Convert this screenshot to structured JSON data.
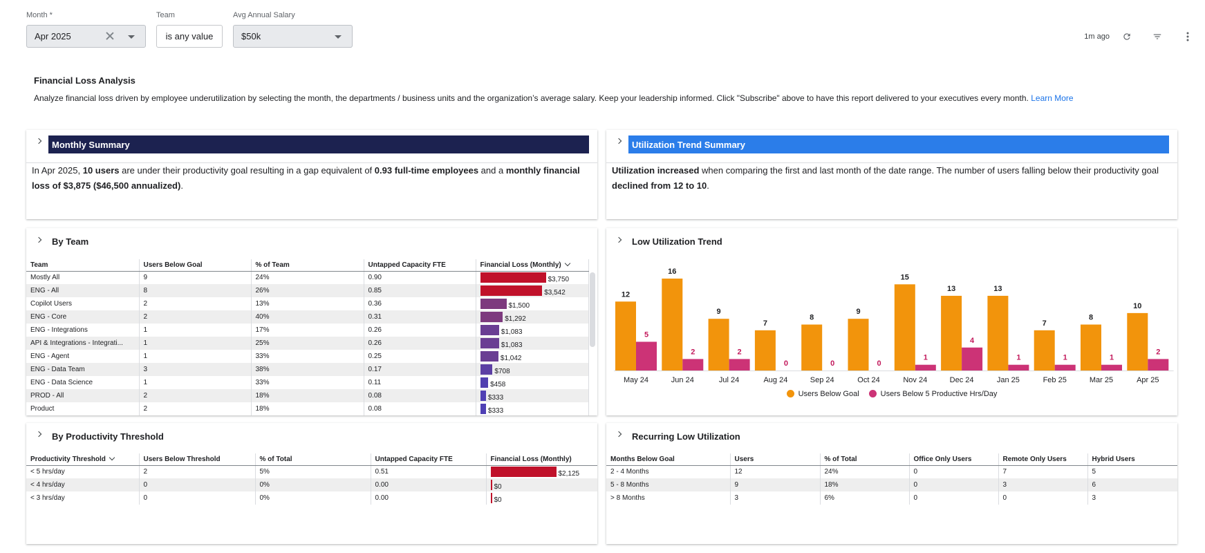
{
  "filters": {
    "month": {
      "label": "Month",
      "required_mark": "*",
      "value": "Apr 2025"
    },
    "team": {
      "label": "Team",
      "value": "is any value"
    },
    "salary": {
      "label": "Avg Annual Salary",
      "value": "$50k"
    }
  },
  "toolbar": {
    "updated": "1m ago",
    "icons": [
      "refresh-icon",
      "filter-icon",
      "more-vert-icon"
    ]
  },
  "header": {
    "title": "Financial Loss Analysis",
    "description": "Analyze financial loss driven by employee underutilization by selecting the month, the departments / business units and the organization’s average salary. Keep your leadership informed. Click \"Subscribe\" above to have this report delivered to your executives every month.",
    "link": "Learn More"
  },
  "monthly_summary": {
    "title": "Monthly Summary",
    "banner_color": "#1c2250",
    "t1": "In Apr 2025, ",
    "b1": "10 users",
    "t2": " are under their productivity goal resulting in a gap equivalent of ",
    "b2": "0.93 full-time employees",
    "t3": " and a ",
    "b3": "monthly financial loss of $3,875 ($46,500 annualized)",
    "t4": "."
  },
  "trend_summary": {
    "title": "Utilization Trend Summary",
    "banner_color": "#2b7de9",
    "b1": "Utilization increased",
    "t1": " when comparing the first and last month of the date range. The number of users falling below their productivity goal ",
    "b2": "declined from 12 to 10",
    "t2": "."
  },
  "by_team": {
    "title": "By Team",
    "columns": [
      "Team",
      "Users Below Goal",
      "% of Team",
      "Untapped Capacity FTE",
      "Financial Loss (Monthly)"
    ],
    "max_loss": 3750,
    "rows": [
      {
        "team": "Mostly All",
        "users": "9",
        "pct": "24%",
        "fte": "0.90",
        "loss": 3750,
        "loss_label": "$3,750",
        "color": "#c0112a"
      },
      {
        "team": "ENG - All",
        "users": "8",
        "pct": "26%",
        "fte": "0.85",
        "loss": 3542,
        "loss_label": "$3,542",
        "color": "#c0112a"
      },
      {
        "team": "Copilot Users",
        "users": "2",
        "pct": "13%",
        "fte": "0.36",
        "loss": 1500,
        "loss_label": "$1,500",
        "color": "#7d3a7e"
      },
      {
        "team": "ENG - Core",
        "users": "2",
        "pct": "40%",
        "fte": "0.31",
        "loss": 1292,
        "loss_label": "$1,292",
        "color": "#7d3a7e"
      },
      {
        "team": "ENG - Integrations",
        "users": "1",
        "pct": "17%",
        "fte": "0.26",
        "loss": 1083,
        "loss_label": "$1,083",
        "color": "#6a3e93"
      },
      {
        "team": "API & Integrations - Integrati...",
        "users": "1",
        "pct": "25%",
        "fte": "0.26",
        "loss": 1083,
        "loss_label": "$1,083",
        "color": "#6a3e93"
      },
      {
        "team": "ENG - Agent",
        "users": "1",
        "pct": "33%",
        "fte": "0.25",
        "loss": 1042,
        "loss_label": "$1,042",
        "color": "#6a3e93"
      },
      {
        "team": "ENG - Data Team",
        "users": "3",
        "pct": "38%",
        "fte": "0.17",
        "loss": 708,
        "loss_label": "$708",
        "color": "#5c3fa4"
      },
      {
        "team": "ENG - Data Science",
        "users": "1",
        "pct": "33%",
        "fte": "0.11",
        "loss": 458,
        "loss_label": "$458",
        "color": "#5140b0"
      },
      {
        "team": "PROD - All",
        "users": "2",
        "pct": "18%",
        "fte": "0.08",
        "loss": 333,
        "loss_label": "$333",
        "color": "#4f40b4"
      },
      {
        "team": "Product",
        "users": "2",
        "pct": "18%",
        "fte": "0.08",
        "loss": 333,
        "loss_label": "$333",
        "color": "#4f40b4"
      }
    ]
  },
  "by_threshold": {
    "title": "By Productivity Threshold",
    "columns": [
      "Productivity Threshold",
      "Users Below Threshold",
      "% of Total",
      "Untapped Capacity FTE",
      "Financial Loss (Monthly)"
    ],
    "max_loss": 2125,
    "rows": [
      {
        "threshold": "< 5 hrs/day",
        "users": "2",
        "pct": "5%",
        "fte": "0.51",
        "loss": 2125,
        "loss_label": "$2,125",
        "color": "#c0112a"
      },
      {
        "threshold": "< 4 hrs/day",
        "users": "0",
        "pct": "0%",
        "fte": "0.00",
        "loss": 0,
        "loss_label": "$0",
        "color": "#c0112a"
      },
      {
        "threshold": "< 3 hrs/day",
        "users": "0",
        "pct": "0%",
        "fte": "0.00",
        "loss": 0,
        "loss_label": "$0",
        "color": "#c0112a"
      }
    ]
  },
  "recurring": {
    "title": "Recurring Low Utilization",
    "columns": [
      "Months Below Goal",
      "Users",
      "% of Total",
      "Office Only Users",
      "Remote Only Users",
      "Hybrid Users"
    ],
    "rows": [
      [
        "2 - 4 Months",
        "12",
        "24%",
        "0",
        "7",
        "5"
      ],
      [
        "5 - 8 Months",
        "9",
        "18%",
        "0",
        "3",
        "6"
      ],
      [
        "> 8 Months",
        "3",
        "6%",
        "0",
        "0",
        "3"
      ]
    ]
  },
  "low_util": {
    "title": "Low Utilization Trend"
  },
  "chart_data": {
    "type": "bar",
    "title": "Low Utilization Trend",
    "categories": [
      "May 24",
      "Jun 24",
      "Jul 24",
      "Aug 24",
      "Sep 24",
      "Oct 24",
      "Nov 24",
      "Dec 24",
      "Jan 25",
      "Feb 25",
      "Mar 25",
      "Apr 25"
    ],
    "series": [
      {
        "name": "Users Below Goal",
        "color": "#f2940c",
        "values": [
          12,
          16,
          9,
          7,
          8,
          9,
          15,
          13,
          13,
          7,
          8,
          10
        ]
      },
      {
        "name": "Users Below 5 Productive Hrs/Day",
        "color": "#cc3376",
        "values": [
          5,
          2,
          2,
          0,
          0,
          0,
          1,
          4,
          1,
          1,
          1,
          2
        ]
      }
    ],
    "ylim": [
      0,
      16
    ],
    "legend": "bottom",
    "xlabel": "",
    "ylabel": ""
  }
}
